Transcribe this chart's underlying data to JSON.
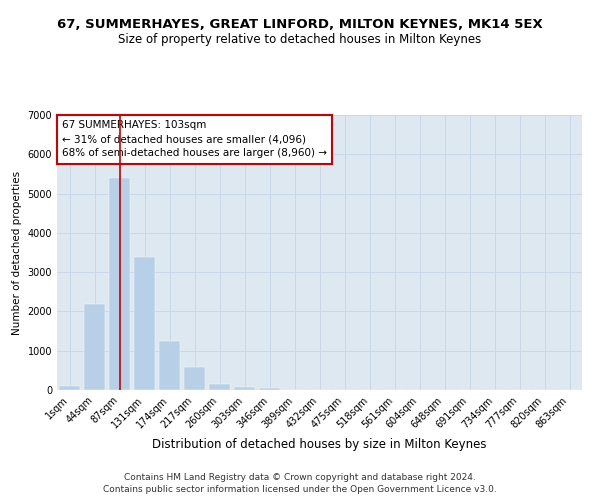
{
  "title": "67, SUMMERHAYES, GREAT LINFORD, MILTON KEYNES, MK14 5EX",
  "subtitle": "Size of property relative to detached houses in Milton Keynes",
  "xlabel": "Distribution of detached houses by size in Milton Keynes",
  "ylabel": "Number of detached properties",
  "bar_color": "#b8cfe8",
  "grid_color": "#c8d8e8",
  "background_color": "#dde8f0",
  "categories": [
    "1sqm",
    "44sqm",
    "87sqm",
    "131sqm",
    "174sqm",
    "217sqm",
    "260sqm",
    "303sqm",
    "346sqm",
    "389sqm",
    "432sqm",
    "475sqm",
    "518sqm",
    "561sqm",
    "604sqm",
    "648sqm",
    "691sqm",
    "734sqm",
    "777sqm",
    "820sqm",
    "863sqm"
  ],
  "values": [
    100,
    2200,
    5400,
    3380,
    1260,
    590,
    145,
    70,
    45,
    8,
    0,
    0,
    0,
    0,
    0,
    0,
    0,
    0,
    0,
    0,
    0
  ],
  "ylim": [
    0,
    7000
  ],
  "yticks": [
    0,
    1000,
    2000,
    3000,
    4000,
    5000,
    6000,
    7000
  ],
  "vline_x": 2.0,
  "vline_color": "#cc0000",
  "annotation_text": "67 SUMMERHAYES: 103sqm\n← 31% of detached houses are smaller (4,096)\n68% of semi-detached houses are larger (8,960) →",
  "annotation_box_color": "#cc0000",
  "footnote_line1": "Contains HM Land Registry data © Crown copyright and database right 2024.",
  "footnote_line2": "Contains public sector information licensed under the Open Government Licence v3.0.",
  "title_fontsize": 9.5,
  "subtitle_fontsize": 8.5,
  "xlabel_fontsize": 8.5,
  "ylabel_fontsize": 7.5,
  "tick_fontsize": 7,
  "annotation_fontsize": 7.5,
  "footnote_fontsize": 6.5
}
